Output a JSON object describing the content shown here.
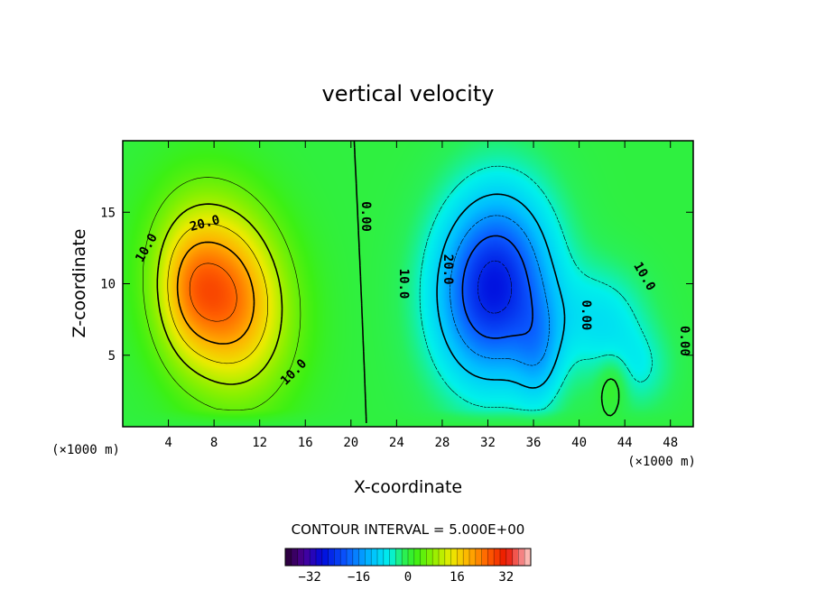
{
  "chart_data": {
    "type": "heatmap",
    "title": "vertical velocity",
    "xlabel": "X-coordinate",
    "ylabel": "Z-coordinate",
    "x_unit": "(×1000 m)",
    "z_unit": "(×1000 m)",
    "xlim": [
      0,
      50
    ],
    "ylim": [
      0,
      20
    ],
    "x_ticks": [
      4,
      8,
      12,
      16,
      20,
      24,
      28,
      32,
      36,
      40,
      44,
      48
    ],
    "y_ticks": [
      5,
      10,
      15
    ],
    "contour_interval_text": "CONTOUR INTERVAL = 5.000E+00",
    "contour_interval": 5,
    "contour_labels": [
      "10.0",
      "20.0",
      "10.0",
      "0.00",
      "10.0",
      "20.0",
      "10.0",
      "0.00",
      "0.00"
    ],
    "colorbar": {
      "ticks": [
        -32,
        -16,
        0,
        16,
        32
      ],
      "range": [
        -40,
        40
      ]
    },
    "features": [
      {
        "kind": "updraft",
        "x": 8.5,
        "z": 9,
        "max": 31
      },
      {
        "kind": "downdraft",
        "x": 33,
        "z": 9.5,
        "min": -30
      },
      {
        "kind": "weak-updraft",
        "x": 43,
        "z": 3,
        "max": 2
      }
    ]
  }
}
